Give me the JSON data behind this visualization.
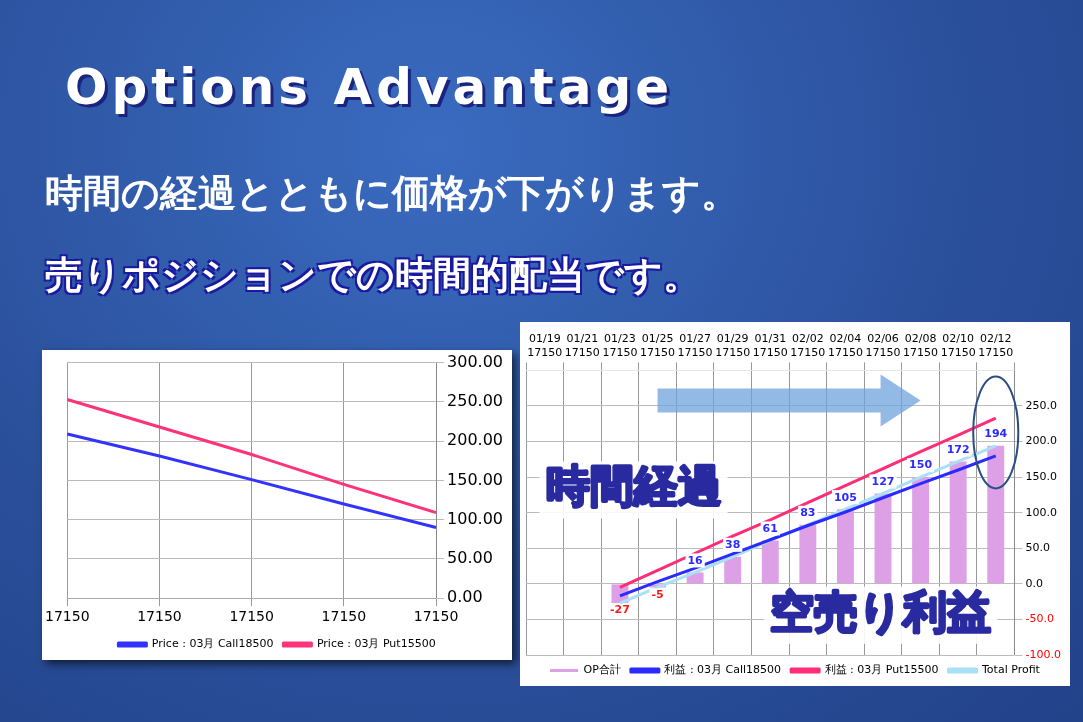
{
  "chart_data": [
    {
      "type": "line",
      "title": "Options Advantage",
      "subtitle": "時間の経過とともに価格が下がります。",
      "annotations": [
        "売りポジションでの時間的配当です。"
      ],
      "categories": [
        "17150",
        "17150",
        "17150",
        "17150",
        "17150"
      ],
      "series": [
        {
          "name": "Price : 03月 Call18500",
          "color": "#3333ff",
          "values": [
            209,
            181,
            151,
            120,
            90
          ]
        },
        {
          "name": "Price : 03月 Put15500",
          "color": "#ff3377",
          "values": [
            253,
            218,
            183,
            145,
            109
          ]
        }
      ],
      "ylim": [
        0,
        300
      ],
      "yticks": [
        {
          "value": 0,
          "label": "0.00"
        },
        {
          "value": 50,
          "label": "50.00"
        },
        {
          "value": 100,
          "label": "100.00"
        },
        {
          "value": 150,
          "label": "150.00"
        },
        {
          "value": 200,
          "label": "200.00"
        },
        {
          "value": 250,
          "label": "250.00"
        },
        {
          "value": 300,
          "label": "300.00"
        }
      ],
      "grid": true,
      "legend": "bottom",
      "marker": "none"
    },
    {
      "type": "bar",
      "annotations": [
        "時間経過",
        "空売り利益"
      ],
      "categories": [
        "01/19\n17150",
        "01/21\n17150",
        "01/23\n17150",
        "01/25\n17150",
        "01/27\n17150",
        "01/29\n17150",
        "01/31\n17150",
        "02/02\n17150",
        "02/04\n17150",
        "02/06\n17150",
        "02/08\n17150",
        "02/10\n17150",
        "02/12\n17150"
      ],
      "series": [
        {
          "name": "OP合計",
          "type": "bar",
          "color": "#dda0e6",
          "values": [
            null,
            null,
            -27,
            -5,
            16,
            38,
            61,
            83,
            105,
            127,
            150,
            172,
            194
          ],
          "value_labels": [
            null,
            null,
            "-27",
            "-5",
            "16",
            "38",
            "61",
            "83",
            "105",
            "127",
            "150",
            "172",
            "194"
          ]
        },
        {
          "name": "利益 : 03月 Call18500",
          "type": "line",
          "color": "#2b2bff",
          "values": [
            null,
            null,
            -17,
            3,
            22,
            42,
            62,
            82,
            101,
            121,
            141,
            160,
            180
          ]
        },
        {
          "name": "利益 : 03月 Put15500",
          "type": "line",
          "color": "#ff2d78",
          "values": [
            null,
            null,
            -5,
            19,
            43,
            67,
            90,
            114,
            138,
            162,
            186,
            209,
            233
          ]
        },
        {
          "name": "Total Profit",
          "type": "line",
          "color": "#a8e0f5",
          "values": [
            null,
            null,
            -27,
            -5,
            16,
            38,
            61,
            83,
            105,
            127,
            150,
            172,
            194
          ]
        }
      ],
      "ylim": [
        -100,
        300
      ],
      "yticks": [
        {
          "value": -100,
          "label": "-100.0"
        },
        {
          "value": -50,
          "label": "-50.0"
        },
        {
          "value": 0,
          "label": "0.0"
        },
        {
          "value": 50,
          "label": "50.0"
        },
        {
          "value": 100,
          "label": "100.0"
        },
        {
          "value": 150,
          "label": "150.0"
        },
        {
          "value": 200,
          "label": "200.0"
        },
        {
          "value": 250,
          "label": "250.0"
        }
      ],
      "grid": true,
      "legend": "bottom",
      "marker": "none"
    }
  ]
}
